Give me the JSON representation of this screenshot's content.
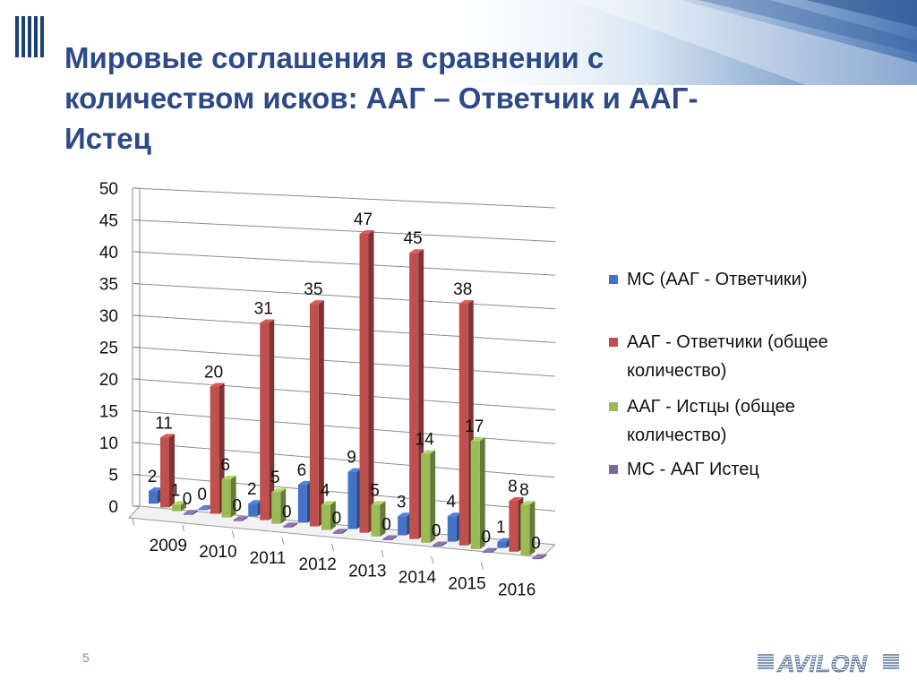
{
  "slide": {
    "title": "Мировые соглашения в сравнении с количеством исков: ААГ – Ответчик и ААГ-Истец",
    "page_number": "5",
    "brand": "AVILON"
  },
  "colors": {
    "title": "#2c4a86",
    "series": [
      "#4472c4",
      "#c0504d",
      "#9bbb59",
      "#8064a2"
    ]
  },
  "chart_data": {
    "type": "bar",
    "categories": [
      "2009",
      "2010",
      "2011",
      "2012",
      "2013",
      "2014",
      "2015",
      "2016"
    ],
    "series": [
      {
        "name": "МС (ААГ - Ответчики)",
        "values": [
          2,
          0,
          2,
          6,
          9,
          3,
          4,
          1
        ]
      },
      {
        "name": "ААГ - Ответчики (общее количество)",
        "values": [
          11,
          20,
          31,
          35,
          47,
          45,
          38,
          8
        ]
      },
      {
        "name": "ААГ - Истцы (общее количество)",
        "values": [
          1,
          6,
          5,
          4,
          5,
          14,
          17,
          8
        ]
      },
      {
        "name": "МС - ААГ Истец",
        "values": [
          0,
          0,
          0,
          0,
          0,
          0,
          0,
          0
        ]
      }
    ],
    "yticks": [
      "0",
      "5",
      "10",
      "15",
      "20",
      "25",
      "30",
      "35",
      "40",
      "45",
      "50"
    ],
    "ylim": [
      0,
      50
    ],
    "grid": true,
    "legend_position": "right",
    "style": "3d clustered column"
  }
}
